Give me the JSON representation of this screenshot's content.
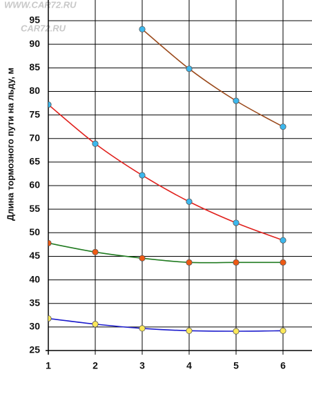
{
  "chart_data": {
    "type": "line",
    "y_label": "Длина тормозного пути на льду, м",
    "watermarks": [
      "WWW.CAR72.RU",
      "CAR72.RU"
    ],
    "x": [
      1,
      2,
      3,
      4,
      5,
      6
    ],
    "xlim": [
      1,
      6.63
    ],
    "xticks": [
      1,
      2,
      3,
      4,
      5,
      6
    ],
    "ylim": [
      25,
      99.4
    ],
    "yticks": [
      25,
      30,
      35,
      40,
      45,
      50,
      55,
      60,
      65,
      70,
      75,
      80,
      85,
      90,
      95
    ],
    "grid": true,
    "series": [
      {
        "color": "#9b4a1c",
        "marker_color": "#3cb8ee",
        "values": [
          null,
          null,
          93.2,
          84.8,
          78.0,
          72.5
        ]
      },
      {
        "color": "#e0201c",
        "marker_color": "#3cb8ee",
        "values": [
          77.2,
          68.9,
          62.2,
          56.6,
          52.1,
          48.4
        ]
      },
      {
        "color": "#1f7a1f",
        "marker_color": "#ee5a14",
        "values": [
          47.8,
          45.9,
          44.6,
          43.7,
          43.7,
          43.7
        ]
      },
      {
        "color": "#1a1acc",
        "marker_color": "#fbe85a",
        "values": [
          31.8,
          30.6,
          29.7,
          29.2,
          29.1,
          29.2
        ]
      }
    ]
  }
}
